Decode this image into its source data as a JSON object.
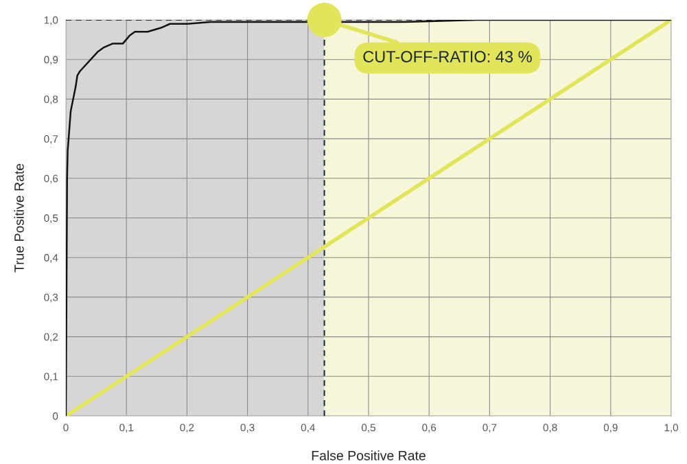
{
  "chart_data": {
    "type": "line",
    "xlabel": "False Positive Rate",
    "ylabel": "True Positive Rate",
    "xlim": [
      0,
      1
    ],
    "ylim": [
      0,
      1
    ],
    "xticks": [
      0,
      {
        "value": 0.1,
        "label": "0,1"
      },
      {
        "value": 0.2,
        "label": "0,2"
      },
      {
        "value": 0.3,
        "label": "0,3"
      },
      {
        "value": 0.4,
        "label": "0,4"
      },
      {
        "value": 0.5,
        "label": "0,5"
      },
      {
        "value": 0.6,
        "label": "0,6"
      },
      {
        "value": 0.7,
        "label": "0,7"
      },
      {
        "value": 0.8,
        "label": "0,8"
      },
      {
        "value": 0.9,
        "label": "0,9"
      },
      {
        "value": 1,
        "label": "1,0"
      }
    ],
    "yticks": [
      0,
      {
        "value": 0.1,
        "label": "0,1"
      },
      {
        "value": 0.2,
        "label": "0,2"
      },
      {
        "value": 0.3,
        "label": "0,3"
      },
      {
        "value": 0.4,
        "label": "0,4"
      },
      {
        "value": 0.5,
        "label": "0,5"
      },
      {
        "value": 0.6,
        "label": "0,6"
      },
      {
        "value": 0.7,
        "label": "0,7"
      },
      {
        "value": 0.8,
        "label": "0,8"
      },
      {
        "value": 0.9,
        "label": "0,9"
      },
      {
        "value": 1,
        "label": "1,0"
      }
    ],
    "grid": true,
    "legend": false,
    "marker": "none",
    "line_style": "solid",
    "series": [
      {
        "color": "#e2e45a",
        "x": [
          0,
          1
        ],
        "values": [
          0,
          1
        ]
      },
      {
        "type": "scatter",
        "marker": "circle",
        "color": "#e2e45a",
        "x": [
          0.427
        ],
        "values": [
          1
        ]
      },
      {
        "color": "#111111",
        "x": [
          0,
          0.001,
          0.002,
          0.003,
          0.008,
          0.016,
          0.019,
          0.023,
          0.053,
          0.062,
          0.077,
          0.094,
          0.105,
          0.114,
          0.135,
          0.157,
          0.172,
          0.201,
          0.239,
          0.56,
          0.68,
          1
        ],
        "values": [
          0,
          0.3,
          0.6,
          0.67,
          0.77,
          0.83,
          0.86,
          0.87,
          0.92,
          0.93,
          0.94,
          0.94,
          0.96,
          0.97,
          0.97,
          0.98,
          0.99,
          0.99,
          0.995,
          0.995,
          1,
          1
        ]
      }
    ],
    "bands": [
      {
        "axis": "x",
        "from": 0,
        "to": 0.427,
        "color": "#d6d6d6"
      },
      {
        "axis": "x",
        "from": 0.427,
        "to": 1,
        "color": "#f6f7d9"
      }
    ],
    "ref_lines": [
      {
        "axis": "x",
        "value": 0.427,
        "color": "#1d2b38",
        "line_style": "dashed"
      },
      {
        "axis": "y",
        "value": 1,
        "color": "#1d2b38",
        "line_style": "dashed"
      }
    ],
    "annotations": [
      {
        "text": "CUT-OFF-RATIO: 43 %",
        "x": 0.427,
        "y": 1
      }
    ]
  }
}
